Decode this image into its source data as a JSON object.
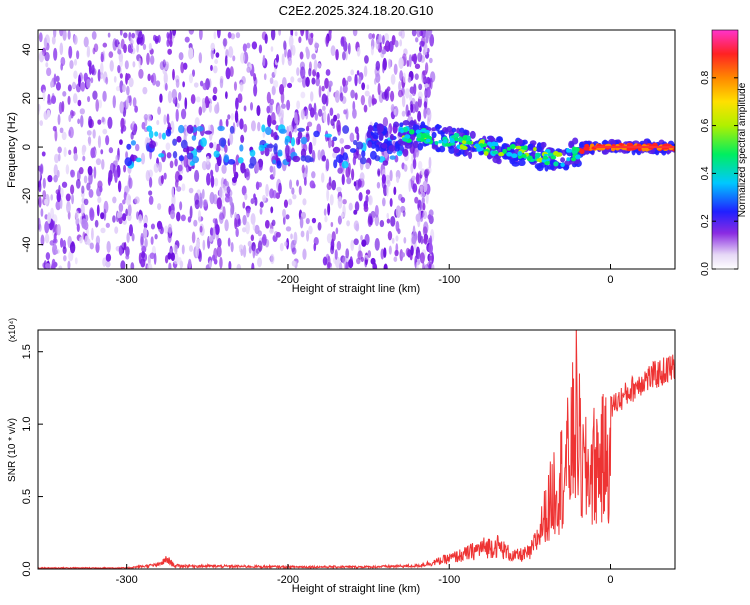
{
  "title": "C2E2.2025.324.18.20.G10",
  "chart_data": [
    {
      "type": "heatmap",
      "xlabel": "Height of straight line (km)",
      "ylabel": "Frequency (Hz)",
      "xlim": [
        -355,
        40
      ],
      "ylim": [
        -50,
        48
      ],
      "xticks": [
        -300,
        -200,
        -100,
        0
      ],
      "yticks": [
        -40,
        -20,
        0,
        20,
        40
      ],
      "grid": false,
      "colorbar": {
        "label": "Normalized spectral amplitude",
        "range": [
          0.0,
          1.0
        ],
        "ticks": [
          0.0,
          0.2,
          0.4,
          0.6,
          0.8
        ]
      },
      "ridge": {
        "x": [
          -155,
          -140,
          -130,
          -120,
          -110,
          -100,
          -90,
          -80,
          -70,
          -60,
          -50,
          -40,
          -30,
          -25,
          -20,
          -15,
          -10,
          0,
          10,
          20,
          40
        ],
        "y": [
          4,
          4,
          5,
          5,
          4,
          3,
          2,
          0,
          -1,
          -2,
          -3,
          -4,
          -5,
          -3,
          -2,
          0,
          0,
          0,
          0,
          0,
          0
        ]
      },
      "noise_band": {
        "x_range": [
          -355,
          -125
        ],
        "freq_range": [
          -50,
          48
        ]
      }
    },
    {
      "type": "line",
      "xlabel": "Height of straight line (km)",
      "ylabel": "SNR (10 * v/v)",
      "y_multiplier": "(x10⁴)",
      "xlim": [
        -355,
        40
      ],
      "ylim": [
        0,
        1.65
      ],
      "xticks": [
        -300,
        -200,
        -100,
        0
      ],
      "yticks": [
        0.0,
        0.5,
        1.0,
        1.5
      ],
      "grid": false,
      "color": "#ee3333",
      "envelope": {
        "x": [
          -355,
          -300,
          -280,
          -275,
          -270,
          -200,
          -150,
          -120,
          -110,
          -100,
          -90,
          -80,
          -70,
          -60,
          -50,
          -45,
          -40,
          -35,
          -30,
          -25,
          -21,
          -18,
          -15,
          -10,
          0,
          10,
          20,
          30,
          40
        ],
        "y": [
          0.01,
          0.01,
          0.04,
          0.09,
          0.03,
          0.02,
          0.02,
          0.03,
          0.06,
          0.1,
          0.14,
          0.2,
          0.22,
          0.12,
          0.15,
          0.3,
          0.55,
          0.85,
          1.0,
          1.2,
          1.65,
          1.05,
          1.0,
          1.1,
          1.2,
          1.3,
          1.4,
          1.45,
          1.5
        ]
      }
    }
  ]
}
